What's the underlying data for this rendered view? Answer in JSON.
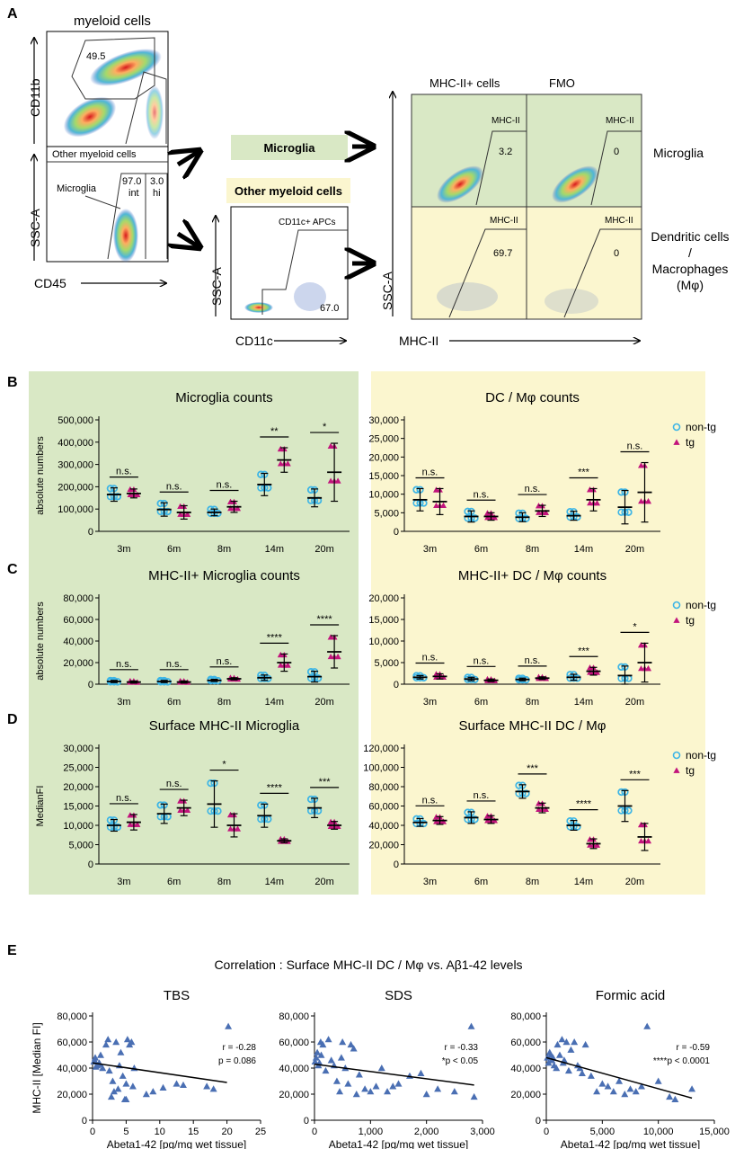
{
  "section_labels": {
    "A": "A",
    "B": "B",
    "C": "C",
    "D": "D",
    "E": "E"
  },
  "flow": {
    "myeloid_title": "myeloid cells",
    "myeloid_gate_value": "49.5",
    "y_axis_top": "CD11b",
    "other_myeloid_label": "Other myeloid cells",
    "microglia_label": "Microglia",
    "int_value": "97.0",
    "int_label": "int",
    "hi_value": "3.0",
    "hi_label": "hi",
    "y_axis_bottom": "SSC-A",
    "x_axis_bottom": "CD45",
    "box_microglia": "Microglia",
    "box_other": "Other myeloid cells",
    "apc_gate_label": "CD11c+ APCs",
    "apc_value": "67.0",
    "apc_y_axis": "SSC-A",
    "apc_x_axis": "CD11c",
    "col_mhc": "MHC-II+ cells",
    "col_fmo": "FMO",
    "gate_label": "MHC-II",
    "mg_mhc_value": "3.2",
    "mg_fmo_value": "0",
    "dc_mhc_value": "69.7",
    "dc_fmo_value": "0",
    "row_microglia": "Microglia",
    "row_dc_1": "Dendritic cells",
    "row_dc_2": "/",
    "row_dc_3": "Macrophages",
    "row_dc_4": "(Mφ)",
    "mhc_y_axis": "SSC-A",
    "mhc_x_axis": "MHC-II"
  },
  "colors": {
    "green_panel": "#d9e8c5",
    "yellow_panel": "#fbf6cf",
    "non_tg": "#3db5e6",
    "tg": "#c2147c",
    "scatter": "#4a6fb3"
  },
  "legend": {
    "non_tg": "non-tg",
    "tg": "tg"
  },
  "chart_data": [
    {
      "id": "B_left",
      "type": "scatter",
      "title": "Microglia counts",
      "ylabel": "absolute numbers",
      "ylim": [
        0,
        500000
      ],
      "yticks": [
        "0",
        "100,000",
        "200,000",
        "300,000",
        "400,000",
        "500,000"
      ],
      "categories": [
        "3m",
        "6m",
        "8m",
        "14m",
        "20m"
      ],
      "series": [
        {
          "name": "non-tg",
          "mean": [
            165000,
            98000,
            85000,
            210000,
            150000
          ],
          "sd": [
            30000,
            30000,
            15000,
            50000,
            40000
          ]
        },
        {
          "name": "tg",
          "mean": [
            170000,
            85000,
            110000,
            320000,
            265000
          ],
          "sd": [
            20000,
            30000,
            25000,
            55000,
            130000
          ]
        }
      ],
      "significance": [
        "n.s.",
        "n.s.",
        "n.s.",
        "**",
        "*"
      ]
    },
    {
      "id": "B_right",
      "type": "scatter",
      "title": "DC / Mφ counts",
      "ylabel": "",
      "ylim": [
        0,
        30000
      ],
      "yticks": [
        "0",
        "5,000",
        "10,000",
        "15,000",
        "20,000",
        "25,000",
        "30,000"
      ],
      "categories": [
        "3m",
        "6m",
        "8m",
        "14m",
        "20m"
      ],
      "series": [
        {
          "name": "non-tg",
          "mean": [
            8500,
            4000,
            3800,
            4200,
            6500
          ],
          "sd": [
            3000,
            1500,
            1200,
            1200,
            4500
          ]
        },
        {
          "name": "tg",
          "mean": [
            8000,
            4000,
            5500,
            8500,
            10500
          ],
          "sd": [
            3500,
            1000,
            1500,
            3000,
            8000
          ]
        }
      ],
      "significance": [
        "n.s.",
        "n.s.",
        "n.s.",
        "***",
        "n.s."
      ]
    },
    {
      "id": "C_left",
      "type": "scatter",
      "title": "MHC-II+ Microglia counts",
      "ylabel": "absolute numbers",
      "ylim": [
        0,
        80000
      ],
      "yticks": [
        "0",
        "20,000",
        "40,000",
        "60,000",
        "80,000"
      ],
      "categories": [
        "3m",
        "6m",
        "8m",
        "14m",
        "20m"
      ],
      "series": [
        {
          "name": "non-tg",
          "mean": [
            2500,
            2500,
            3500,
            6000,
            7000
          ],
          "sd": [
            1000,
            1000,
            1000,
            2500,
            5000
          ]
        },
        {
          "name": "tg",
          "mean": [
            2000,
            2000,
            5000,
            20000,
            30000
          ],
          "sd": [
            1000,
            1000,
            1000,
            8000,
            15000
          ]
        }
      ],
      "significance": [
        "n.s.",
        "n.s.",
        "n.s.",
        "****",
        "****"
      ]
    },
    {
      "id": "C_right",
      "type": "scatter",
      "title": "MHC-II+ DC / Mφ counts",
      "ylabel": "",
      "ylim": [
        0,
        20000
      ],
      "yticks": [
        "0",
        "5,000",
        "10,000",
        "15,000",
        "20,000"
      ],
      "categories": [
        "3m",
        "6m",
        "8m",
        "14m",
        "20m"
      ],
      "series": [
        {
          "name": "non-tg",
          "mean": [
            1600,
            1200,
            1100,
            1600,
            2000
          ],
          "sd": [
            400,
            400,
            300,
            700,
            2200
          ]
        },
        {
          "name": "tg",
          "mean": [
            1800,
            900,
            1400,
            3000,
            5000
          ],
          "sd": [
            600,
            300,
            300,
            900,
            4500
          ]
        }
      ],
      "significance": [
        "n.s.",
        "n.s.",
        "n.s.",
        "***",
        "*"
      ]
    },
    {
      "id": "D_left",
      "type": "scatter",
      "title": "Surface MHC-II Microglia",
      "ylabel": "MedianFI",
      "ylim": [
        0,
        30000
      ],
      "yticks": [
        "0",
        "5,000",
        "10,000",
        "15,000",
        "20,000",
        "25,000",
        "30,000"
      ],
      "categories": [
        "3m",
        "6m",
        "8m",
        "14m",
        "20m"
      ],
      "series": [
        {
          "name": "non-tg",
          "mean": [
            10000,
            13000,
            15500,
            12500,
            14500
          ],
          "sd": [
            1500,
            2500,
            6000,
            3000,
            2500
          ]
        },
        {
          "name": "tg",
          "mean": [
            10800,
            14500,
            10000,
            6000,
            10000
          ],
          "sd": [
            2000,
            2000,
            3000,
            500,
            1000
          ]
        }
      ],
      "significance": [
        "n.s.",
        "n.s.",
        "*",
        "****",
        "***"
      ]
    },
    {
      "id": "D_right",
      "type": "scatter",
      "title": "Surface MHC-II DC / Mφ",
      "ylabel": "",
      "ylim": [
        0,
        120000
      ],
      "yticks": [
        "0",
        "20,000",
        "40,000",
        "60,000",
        "80,000",
        "100,000",
        "120,000"
      ],
      "categories": [
        "3m",
        "6m",
        "8m",
        "14m",
        "20m"
      ],
      "series": [
        {
          "name": "non-tg",
          "mean": [
            43000,
            48000,
            75000,
            40000,
            60000
          ],
          "sd": [
            4000,
            6000,
            7000,
            5000,
            16000
          ]
        },
        {
          "name": "tg",
          "mean": [
            45000,
            46000,
            58000,
            21000,
            28000
          ],
          "sd": [
            4000,
            4000,
            5000,
            5000,
            14000
          ]
        }
      ],
      "significance": [
        "n.s.",
        "n.s.",
        "***",
        "****",
        "***"
      ]
    },
    {
      "id": "E_TBS",
      "type": "scatter",
      "title": "TBS",
      "xlabel": "Abeta1-42 [pg/mg wet tissue]",
      "ylabel": "MHC-II [Median FI]",
      "xlim": [
        0,
        25
      ],
      "ylim": [
        0,
        80000
      ],
      "xticks": [
        "0",
        "5",
        "10",
        "15",
        "20",
        "25"
      ],
      "yticks": [
        "0",
        "20,000",
        "40,000",
        "60,000",
        "80,000"
      ],
      "x": [
        0.2,
        0.4,
        0.7,
        1.0,
        1.5,
        2.0,
        2.3,
        2.5,
        3.0,
        3.2,
        3.5,
        4.0,
        4.5,
        5.0,
        5.2,
        5.5,
        5.8,
        6.0,
        0.3,
        0.5,
        1.2,
        2.8,
        3.8,
        4.2,
        5.0,
        6.2,
        8.0,
        9.0,
        10.5,
        12.5,
        13.5,
        17.0,
        18.0,
        20.2,
        1.0,
        4.8
      ],
      "y": [
        45000,
        48000,
        42000,
        44000,
        40000,
        58000,
        62000,
        38000,
        30000,
        22000,
        60000,
        42000,
        34000,
        28000,
        62000,
        58000,
        60000,
        26000,
        46000,
        41000,
        50000,
        18000,
        24000,
        52000,
        16000,
        40000,
        20000,
        22000,
        25000,
        28000,
        27000,
        26000,
        24000,
        72000,
        43000,
        16000
      ],
      "fit": {
        "x": [
          0,
          20
        ],
        "y": [
          44000,
          29000
        ]
      },
      "stats_r": "r = -0.28",
      "stats_p": "p = 0.086"
    },
    {
      "id": "E_SDS",
      "type": "scatter",
      "title": "SDS",
      "xlabel": "Abeta1-42 [pg/mg wet tissue]",
      "ylabel": "",
      "xlim": [
        0,
        3000
      ],
      "ylim": [
        0,
        80000
      ],
      "xticks": [
        "0",
        "1,000",
        "2,000",
        "3,000"
      ],
      "yticks": [
        "0",
        "20,000",
        "40,000",
        "60,000",
        "80,000"
      ],
      "x": [
        10,
        30,
        50,
        70,
        90,
        110,
        150,
        200,
        250,
        300,
        350,
        400,
        450,
        500,
        550,
        600,
        650,
        700,
        750,
        800,
        900,
        1000,
        1100,
        1200,
        1300,
        1400,
        1500,
        1700,
        1900,
        2000,
        2200,
        2500,
        2800,
        2850,
        120,
        480
      ],
      "y": [
        45000,
        48000,
        52000,
        42000,
        44000,
        60000,
        58000,
        38000,
        62000,
        46000,
        42000,
        30000,
        22000,
        60000,
        40000,
        28000,
        58000,
        55000,
        20000,
        35000,
        24000,
        22000,
        26000,
        40000,
        22000,
        26000,
        28000,
        34000,
        36000,
        20000,
        24000,
        22000,
        72000,
        18000,
        50000,
        48000
      ],
      "fit": {
        "x": [
          0,
          2850
        ],
        "y": [
          43000,
          27000
        ]
      },
      "stats_r": "r = -0.33",
      "stats_p": "*p < 0.05"
    },
    {
      "id": "E_FA",
      "type": "scatter",
      "title": "Formic  acid",
      "xlabel": "Abeta1-42 [pg/mg wet tissue]",
      "ylabel": "",
      "xlim": [
        0,
        15000
      ],
      "ylim": [
        0,
        80000
      ],
      "xticks": [
        "0",
        "5,000",
        "10,000",
        "15,000"
      ],
      "yticks": [
        "0",
        "20,000",
        "40,000",
        "60,000",
        "80,000"
      ],
      "x": [
        100,
        200,
        300,
        500,
        700,
        900,
        1000,
        1200,
        1400,
        1600,
        1800,
        2000,
        2200,
        2500,
        3000,
        3500,
        4000,
        4500,
        5000,
        5500,
        6000,
        6500,
        7000,
        7500,
        8000,
        8500,
        9000,
        10000,
        11000,
        11500,
        13000,
        400,
        1500,
        2800,
        600,
        3200
      ],
      "y": [
        48000,
        44000,
        52000,
        46000,
        42000,
        40000,
        58000,
        50000,
        62000,
        46000,
        60000,
        38000,
        54000,
        60000,
        40000,
        58000,
        34000,
        22000,
        28000,
        26000,
        22000,
        30000,
        20000,
        24000,
        22000,
        26000,
        72000,
        30000,
        18000,
        16000,
        24000,
        50000,
        44000,
        42000,
        48000,
        36000
      ],
      "fit": {
        "x": [
          0,
          13000
        ],
        "y": [
          48000,
          17000
        ]
      },
      "stats_r": "r = -0.59",
      "stats_p": "****p < 0.0001"
    }
  ],
  "correlation_title": "Correlation :  Surface MHC-II DC / Mφ    vs.   Aβ1-42 levels"
}
